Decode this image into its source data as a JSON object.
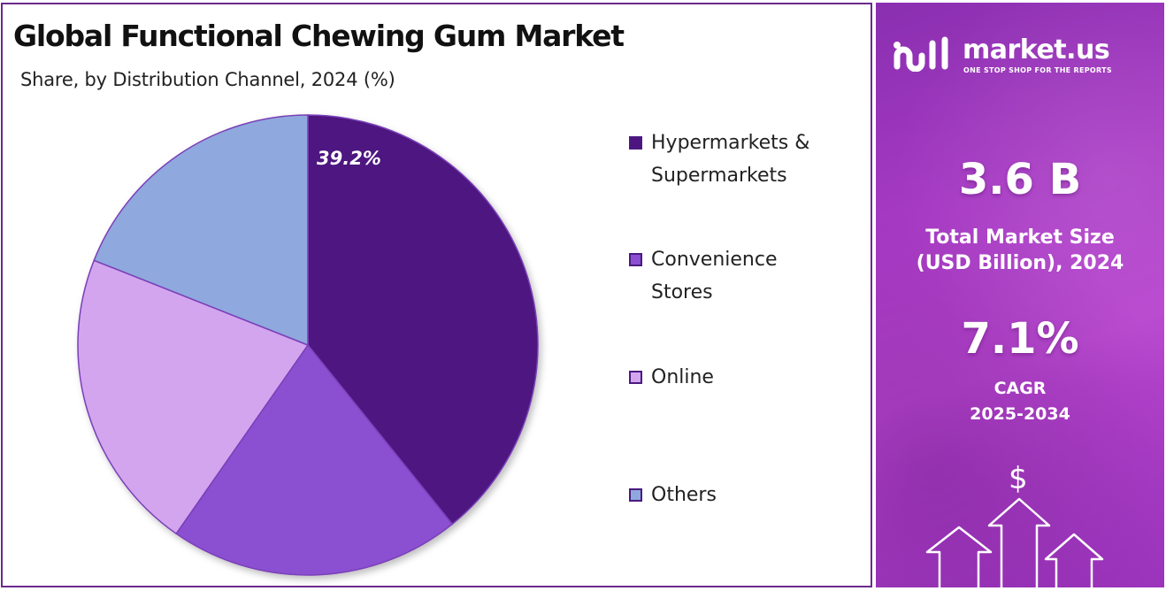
{
  "chart_data": {
    "type": "pie",
    "title": "Global Functional Chewing Gum Market",
    "subtitle": "Share, by Distribution Channel, 2024 (%)",
    "categories": [
      "Hypermarkets & Supermarkets",
      "Convenience Stores",
      "Online",
      "Others"
    ],
    "values": [
      39.2,
      20.5,
      21.3,
      19.0
    ],
    "value_labels": [
      "39.2%",
      "",
      "",
      ""
    ],
    "colors": [
      "#4e1580",
      "#8b4fd1",
      "#d3a5ee",
      "#8fa8dd"
    ],
    "start_angle_deg": 0,
    "direction": "clockwise",
    "legend_position": "right"
  },
  "legend": {
    "items": [
      {
        "line1": "Hypermarkets &",
        "line2": "Supermarkets"
      },
      {
        "line1": "Convenience",
        "line2": "Stores"
      },
      {
        "line1": "Online",
        "line2": ""
      },
      {
        "line1": "Others",
        "line2": ""
      }
    ]
  },
  "sidebar": {
    "brand": {
      "name": "market.us",
      "tagline": "ONE STOP SHOP FOR THE REPORTS",
      "icon": "market-us-logo-icon"
    },
    "market_size": {
      "value": "3.6 B",
      "label_line1": "Total Market Size",
      "label_line2": "(USD Billion), 2024"
    },
    "cagr": {
      "value": "7.1%",
      "label_line1": "CAGR",
      "label_line2": "2025-2034"
    },
    "decoration": {
      "symbol": "$",
      "icon": "growth-arrows-icon"
    }
  }
}
